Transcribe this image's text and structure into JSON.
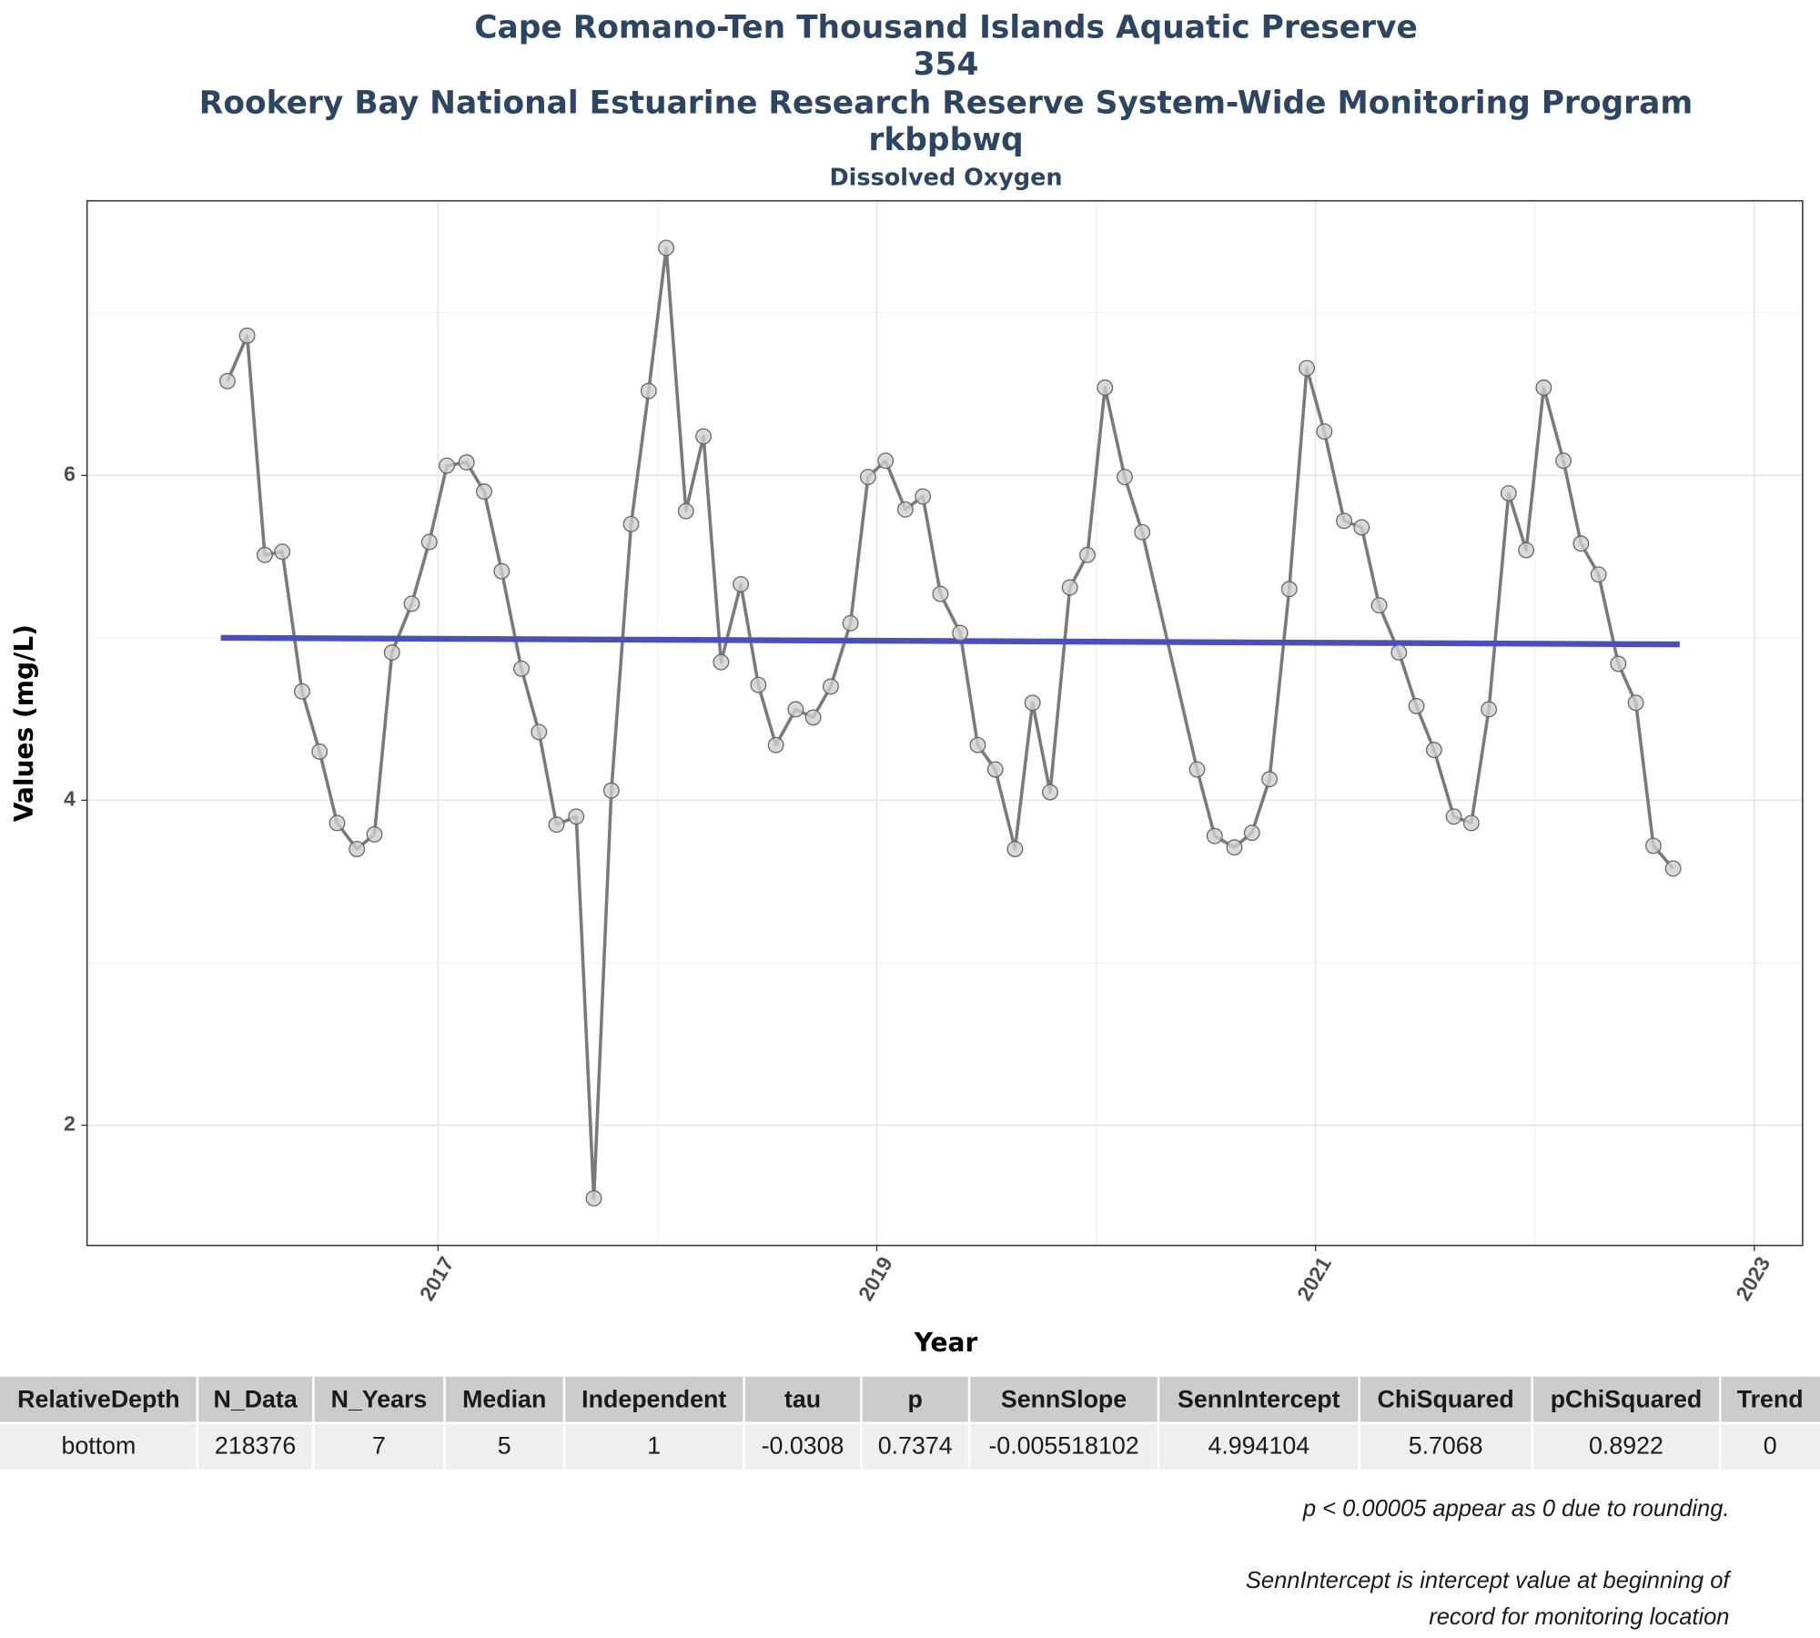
{
  "chart_data": {
    "type": "line",
    "title": [
      "Cape Romano-Ten Thousand Islands Aquatic Preserve",
      "354",
      "Rookery Bay National Estuarine Research Reserve System-Wide Monitoring Program",
      "rkbpbwq"
    ],
    "subtitle": "Dissolved Oxygen",
    "x_label": "Year",
    "y_label": "Values (mg/L)",
    "xlim": [
      2015.4,
      2023.22
    ],
    "xticks": [
      2017,
      2019,
      2021,
      2023
    ],
    "xminor": [
      2018,
      2020,
      2022
    ],
    "ylim": [
      1.26,
      7.69
    ],
    "yticks": [
      2,
      4,
      6
    ],
    "yminor": [
      3,
      5,
      7
    ],
    "grid": true,
    "series": [
      {
        "color": "#7a7a7a",
        "marker_color": "#d0d0d0",
        "x": [
          2016.04,
          2016.13,
          2016.21,
          2016.29,
          2016.38,
          2016.46,
          2016.54,
          2016.63,
          2016.71,
          2016.79,
          2016.88,
          2016.96,
          2017.04,
          2017.13,
          2017.21,
          2017.29,
          2017.38,
          2017.46,
          2017.54,
          2017.63,
          2017.71,
          2017.79,
          2017.88,
          2017.96,
          2018.04,
          2018.13,
          2018.21,
          2018.29,
          2018.38,
          2018.46,
          2018.54,
          2018.63,
          2018.71,
          2018.79,
          2018.88,
          2018.96,
          2019.04,
          2019.13,
          2019.21,
          2019.29,
          2019.38,
          2019.46,
          2019.54,
          2019.63,
          2019.71,
          2019.79,
          2019.88,
          2019.96,
          2020.04,
          2020.13,
          2020.21,
          2020.46,
          2020.54,
          2020.63,
          2020.71,
          2020.79,
          2020.88,
          2020.96,
          2021.04,
          2021.13,
          2021.21,
          2021.29,
          2021.38,
          2021.46,
          2021.54,
          2021.63,
          2021.71,
          2021.79,
          2021.88,
          2021.96,
          2022.04,
          2022.13,
          2022.21,
          2022.29,
          2022.38,
          2022.46,
          2022.54,
          2022.63
        ],
        "values": [
          6.58,
          6.86,
          5.51,
          5.53,
          4.67,
          4.3,
          3.86,
          3.7,
          3.79,
          4.91,
          5.21,
          5.59,
          6.06,
          6.08,
          5.9,
          5.41,
          4.81,
          4.42,
          3.85,
          3.9,
          1.55,
          4.06,
          5.7,
          6.52,
          7.4,
          5.78,
          6.24,
          4.85,
          5.33,
          4.71,
          4.34,
          4.56,
          4.51,
          4.7,
          5.09,
          5.99,
          6.09,
          5.79,
          5.87,
          5.27,
          5.03,
          4.34,
          4.19,
          3.7,
          4.6,
          4.05,
          5.31,
          5.51,
          6.54,
          5.99,
          5.65,
          4.19,
          3.78,
          3.71,
          3.8,
          4.13,
          5.3,
          6.66,
          6.27,
          5.72,
          5.68,
          5.2,
          4.91,
          4.58,
          4.31,
          3.9,
          3.86,
          4.56,
          5.89,
          5.54,
          6.54,
          6.09,
          5.58,
          5.39,
          4.84,
          4.6,
          3.72,
          3.58
        ]
      },
      {
        "color": "#4b4fbc",
        "x": [
          2016.01,
          2022.66
        ],
        "values": [
          5.0,
          4.96
        ]
      }
    ]
  },
  "table": {
    "header": [
      "RelativeDepth",
      "N_Data",
      "N_Years",
      "Median",
      "Independent",
      "tau",
      "p",
      "SennSlope",
      "SennIntercept",
      "ChiSquared",
      "pChiSquared",
      "Trend"
    ],
    "rows": [
      [
        "bottom",
        "218376",
        "7",
        "5",
        "1",
        "-0.0308",
        "0.7374",
        "-0.005518102",
        "4.994104",
        "5.7068",
        "0.8922",
        "0"
      ]
    ]
  },
  "notes": [
    "p < 0.00005 appear as 0 due to rounding.",
    "SennIntercept is intercept value at beginning of",
    "record for monitoring location"
  ]
}
